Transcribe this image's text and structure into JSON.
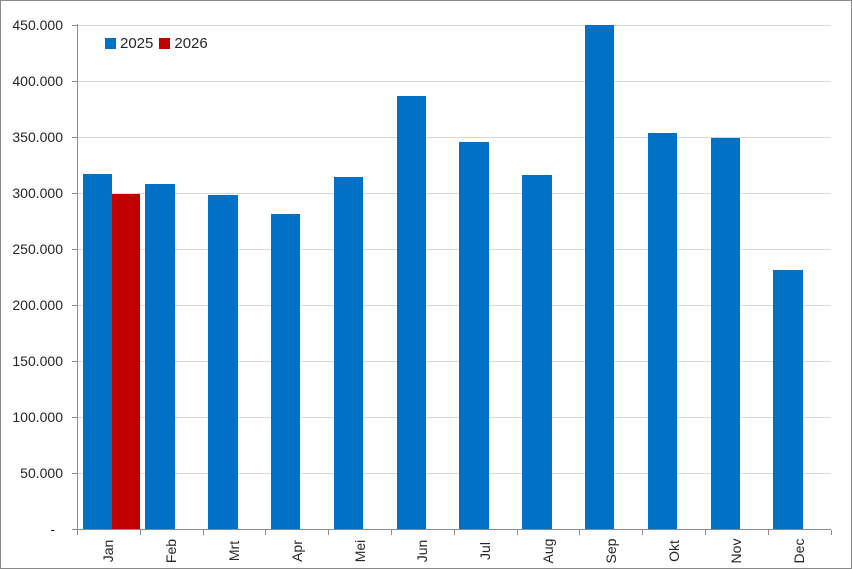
{
  "chart_data": {
    "type": "bar",
    "title": "",
    "categories": [
      "Jan",
      "Feb",
      "Mrt",
      "Apr",
      "Mei",
      "Jun",
      "Jul",
      "Aug",
      "Sep",
      "Okt",
      "Nov",
      "Dec"
    ],
    "series": [
      {
        "name": "2025",
        "color": "#0072C6",
        "values": [
          317000,
          308000,
          298000,
          281000,
          314000,
          386000,
          345000,
          316000,
          450000,
          353000,
          349000,
          231000
        ]
      },
      {
        "name": "2026",
        "color": "#C00000",
        "values": [
          299000,
          null,
          null,
          null,
          null,
          null,
          null,
          null,
          null,
          null,
          null,
          null
        ]
      }
    ],
    "y_axis": {
      "min": 0,
      "max": 450000,
      "step": 50000,
      "tick_labels": [
        "450.000",
        "400.000",
        "350.000",
        "300.000",
        "250.000",
        "200.000",
        "150.000",
        "100.000",
        "50.000",
        "-"
      ],
      "zero_label": "-",
      "number_format": "dutch-thousands-dot"
    },
    "x_axis": {
      "label_rotation_deg": -90
    },
    "legend": {
      "position": "top-left-inside",
      "entries": [
        "2025",
        "2026"
      ]
    },
    "grid": true,
    "colors": {
      "gridline": "#D9D9D9",
      "axis": "#8C8C8C",
      "text": "#262626",
      "border": "#898989",
      "background": "#FFFFFF"
    }
  }
}
